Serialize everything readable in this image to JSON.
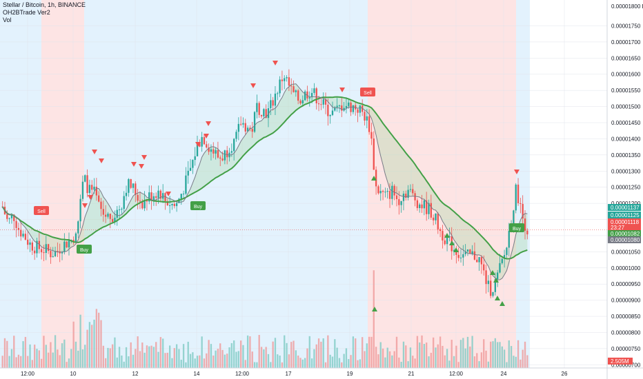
{
  "legend": {
    "symbol": "Stellar / Bitcoin, 1h, BINANCE",
    "indicator": "OH2BTrade Ver2",
    "volume_label": "Vol"
  },
  "colors": {
    "up": "#26a69a",
    "down": "#ef5350",
    "ma_green": "#43a047",
    "ma_red": "#e53935",
    "gray_line": "#787b86",
    "bg_blue": "#e3f2fd",
    "bg_red": "#fde4e4",
    "vol_up": "#80cbc4",
    "vol_down": "#ef9a9a",
    "axis_text": "#131722"
  },
  "chart_data": {
    "type": "candlestick",
    "title": "Stellar / Bitcoin, 1h, BINANCE",
    "currency": "BTC",
    "ylim": [
      6.9e-06,
      1.83e-05
    ],
    "y_ticks": [
      "0.00001750",
      "0.00001700",
      "0.00001650",
      "0.00001600",
      "0.00001550",
      "0.00001500",
      "0.00001450",
      "0.00001400",
      "0.00001350",
      "0.00001300",
      "0.00001250",
      "0.00001200",
      "0.00001150",
      "0.00001100",
      "0.00001050",
      "0.00001000",
      "0.00000950",
      "0.00000900",
      "0.00000850",
      "0.00000800",
      "0.00000750",
      "0.00000700"
    ],
    "y_top_label": "0.00001800",
    "x_ticks": [
      "12:00",
      "10",
      "12",
      "14",
      "12:00",
      "17",
      "19",
      "21",
      "12:00",
      "24",
      "26"
    ],
    "price_path": [
      [
        1.19e-05,
        1.14e-05,
        1.165e-05,
        1.12e-05,
        1.1e-05,
        1.075e-05,
        1.065e-05,
        1.06e-05,
        1.055e-05,
        1.045e-05,
        1.05e-05,
        1.07e-05,
        1.08e-05,
        1.09e-05,
        1.15e-05,
        1.28e-05,
        1.24e-05,
        1.23e-05,
        1.18e-05,
        1.16e-05,
        1.16e-05,
        1.17e-05,
        1.2e-05,
        1.26e-05,
        1.25e-05,
        1.22e-05,
        1.2e-05,
        1.22e-05,
        1.23e-05,
        1.24e-05,
        1.21e-05,
        1.2e-05,
        1.19e-05,
        1.23e-05,
        1.27e-05,
        1.32e-05,
        1.38e-05,
        1.41e-05,
        1.38e-05,
        1.36e-05,
        1.34e-05,
        1.35e-05,
        1.38e-05,
        1.39e-05,
        1.45e-05,
        1.44e-05,
        1.42e-05,
        1.5e-05,
        1.49e-05,
        1.48e-05,
        1.52e-05,
        1.56e-05,
        1.6e-05,
        1.56e-05,
        1.53e-05,
        1.52e-05,
        1.54e-05,
        1.55e-05,
        1.53e-05,
        1.51e-05,
        1.49e-05,
        1.48e-05,
        1.49e-05,
        1.51e-05,
        1.5e-05,
        1.5e-05,
        1.49e-05,
        1.47e-05,
        1.43e-05,
        1.25e-05,
        1.23e-05,
        1.22e-05,
        1.24e-05,
        1.21e-05,
        1.23e-05,
        1.24e-05,
        1.22e-05,
        1.2e-05,
        1.19e-05,
        1.18e-05,
        1.15e-05,
        1.11e-05,
        1.09e-05,
        1.07e-05,
        1.05e-05,
        1.04e-05,
        1.035e-05,
        1.04e-05,
        1.03e-05,
        9.8e-06,
        9.3e-06,
        9.5e-06,
        1e-05,
        1.05e-05,
        1.15e-05,
        1.25e-05,
        1.16e-05,
        1.12e-05
      ]
    ],
    "sell_signals": [
      "Sell",
      "Sell"
    ],
    "buy_signals": [
      "Buy",
      "Buy",
      "Buy"
    ],
    "price_labels": [
      {
        "value": "0.00001137",
        "color": "#26a69a"
      },
      {
        "value": "0.00001125",
        "color": "#26a69a"
      },
      {
        "value": "0.00001118",
        "color": "#ef5350"
      },
      {
        "value": "23:27",
        "color": "#ef5350"
      },
      {
        "value": "0.00001082",
        "color": "#43a047"
      },
      {
        "value": "0.00001080",
        "color": "#787b86"
      }
    ],
    "volume_label": {
      "value": "2.505M",
      "color": "#ef5350"
    }
  }
}
